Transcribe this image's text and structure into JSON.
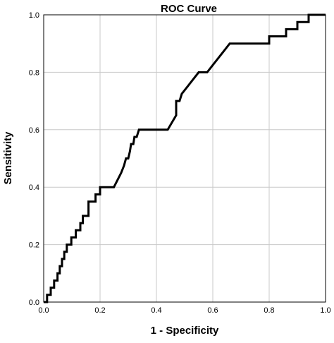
{
  "chart_data": {
    "type": "line",
    "title": "ROC Curve",
    "xlabel": "1 - Specificity",
    "ylabel": "Sensitivity",
    "xlim": [
      0,
      1
    ],
    "ylim": [
      0,
      1
    ],
    "xticks": [
      "0.0",
      "0.2",
      "0.4",
      "0.6",
      "0.8",
      "1.0"
    ],
    "yticks": [
      "0.0",
      "0.2",
      "0.4",
      "0.6",
      "0.8",
      "1.0"
    ],
    "grid": true,
    "series": [
      {
        "x": [
          0,
          0.012,
          0.012,
          0.025,
          0.025,
          0.037,
          0.037,
          0.049,
          0.049,
          0.057,
          0.057,
          0.065,
          0.065,
          0.073,
          0.073,
          0.082,
          0.082,
          0.098,
          0.098,
          0.114,
          0.114,
          0.13,
          0.13,
          0.139,
          0.139,
          0.159,
          0.159,
          0.184,
          0.184,
          0.2,
          0.2,
          0.208,
          0.208,
          0.249,
          0.275,
          0.285,
          0.292,
          0.3,
          0.306,
          0.31,
          0.318,
          0.322,
          0.33,
          0.338,
          0.347,
          0.44,
          0.47,
          0.47,
          0.482,
          0.49,
          0.51,
          0.53,
          0.55,
          0.56,
          0.58,
          0.6,
          0.62,
          0.64,
          0.66,
          0.68,
          0.8,
          0.8,
          0.86,
          0.86,
          0.9,
          0.9,
          0.94,
          0.94,
          0.96,
          0.96,
          1.0
        ],
        "y": [
          0,
          0,
          0.025,
          0.025,
          0.05,
          0.05,
          0.075,
          0.075,
          0.1,
          0.1,
          0.125,
          0.125,
          0.15,
          0.15,
          0.175,
          0.175,
          0.2,
          0.2,
          0.225,
          0.225,
          0.25,
          0.25,
          0.275,
          0.275,
          0.3,
          0.3,
          0.35,
          0.35,
          0.375,
          0.375,
          0.4,
          0.4,
          0.4,
          0.4,
          0.45,
          0.475,
          0.5,
          0.5,
          0.525,
          0.55,
          0.55,
          0.575,
          0.575,
          0.6,
          0.6,
          0.6,
          0.65,
          0.7,
          0.7,
          0.725,
          0.75,
          0.775,
          0.8,
          0.8,
          0.8,
          0.825,
          0.85,
          0.875,
          0.9,
          0.9,
          0.9,
          0.925,
          0.925,
          0.95,
          0.95,
          0.975,
          0.975,
          1.0,
          1.0,
          1.0,
          1.0
        ]
      }
    ]
  }
}
